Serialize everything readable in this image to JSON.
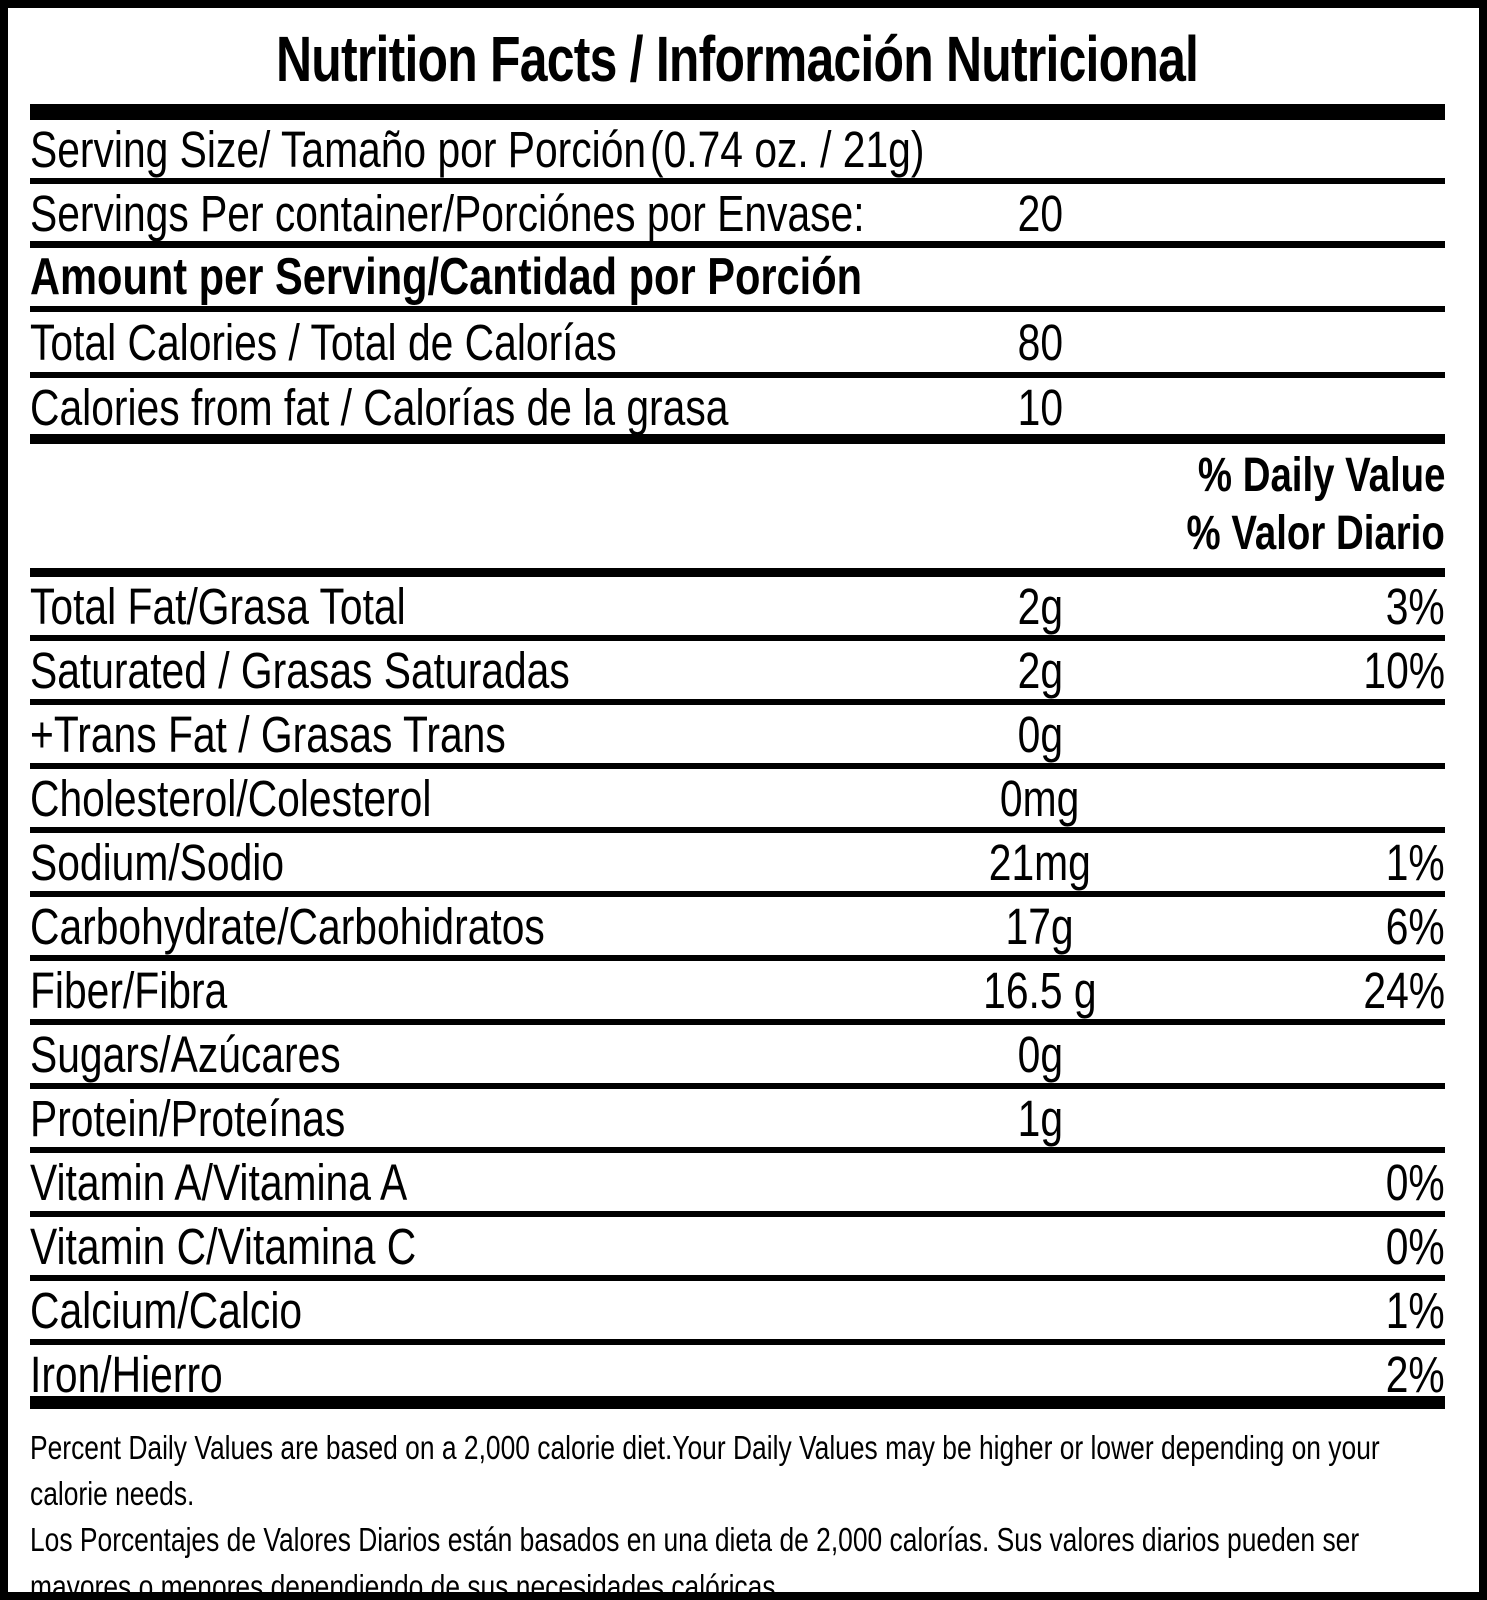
{
  "title": "Nutrition Facts / Información Nutricional",
  "serving_size": {
    "label": "Serving Size/ Tamaño por Porción",
    "value": "(0.74 oz. / 21g)"
  },
  "servings_per_container": {
    "label": "Servings Per container/Porciónes por Envase:",
    "value": "20"
  },
  "amount_header": "Amount per Serving/Cantidad por Porción",
  "calorie_rows": [
    {
      "label": "Total Calories / Total de Calorías",
      "amount": "80"
    },
    {
      "label": "Calories from fat / Calorías de la grasa",
      "amount": "10"
    }
  ],
  "daily_value_header": {
    "line1": "% Daily Value",
    "line2": "% Valor Diario"
  },
  "nutrient_rows": [
    {
      "label": "Total Fat/Grasa Total",
      "amount": "2g",
      "percent": "3%"
    },
    {
      "label": "Saturated / Grasas Saturadas",
      "amount": "2g",
      "percent": "10%"
    },
    {
      "label": "+Trans Fat / Grasas Trans",
      "amount": "0g",
      "percent": ""
    },
    {
      "label": "Cholesterol/Colesterol",
      "amount": "0mg",
      "percent": ""
    },
    {
      "label": "Sodium/Sodio",
      "amount": "21mg",
      "percent": "1%"
    },
    {
      "label": "Carbohydrate/Carbohidratos",
      "amount": "17g",
      "percent": "6%"
    },
    {
      "label": "Fiber/Fibra",
      "amount": "16.5 g",
      "percent": "24%"
    },
    {
      "label": "Sugars/Azúcares",
      "amount": "0g",
      "percent": ""
    },
    {
      "label": "Protein/Proteínas",
      "amount": "1g",
      "percent": ""
    },
    {
      "label": "Vitamin A/Vitamina A",
      "amount": "",
      "percent": "0%"
    },
    {
      "label": "Vitamin C/Vitamina C",
      "amount": "",
      "percent": "0%"
    },
    {
      "label": "Calcium/Calcio",
      "amount": "",
      "percent": "1%"
    },
    {
      "label": "Iron/Hierro",
      "amount": "",
      "percent": "2%"
    }
  ],
  "footnote": {
    "english": "Percent Daily Values are based on a 2,000 calorie diet.Your Daily Values may be higher or lower depending on your calorie needs.",
    "spanish": "Los Porcentajes de Valores Diarios están basados en una dieta de 2,000 calorías. Sus valores diarios pueden ser mayores o menores dependiendo de sus necesidades calóricas"
  },
  "colors": {
    "text": "#000000",
    "background": "#ffffff",
    "rule": "#000000"
  }
}
